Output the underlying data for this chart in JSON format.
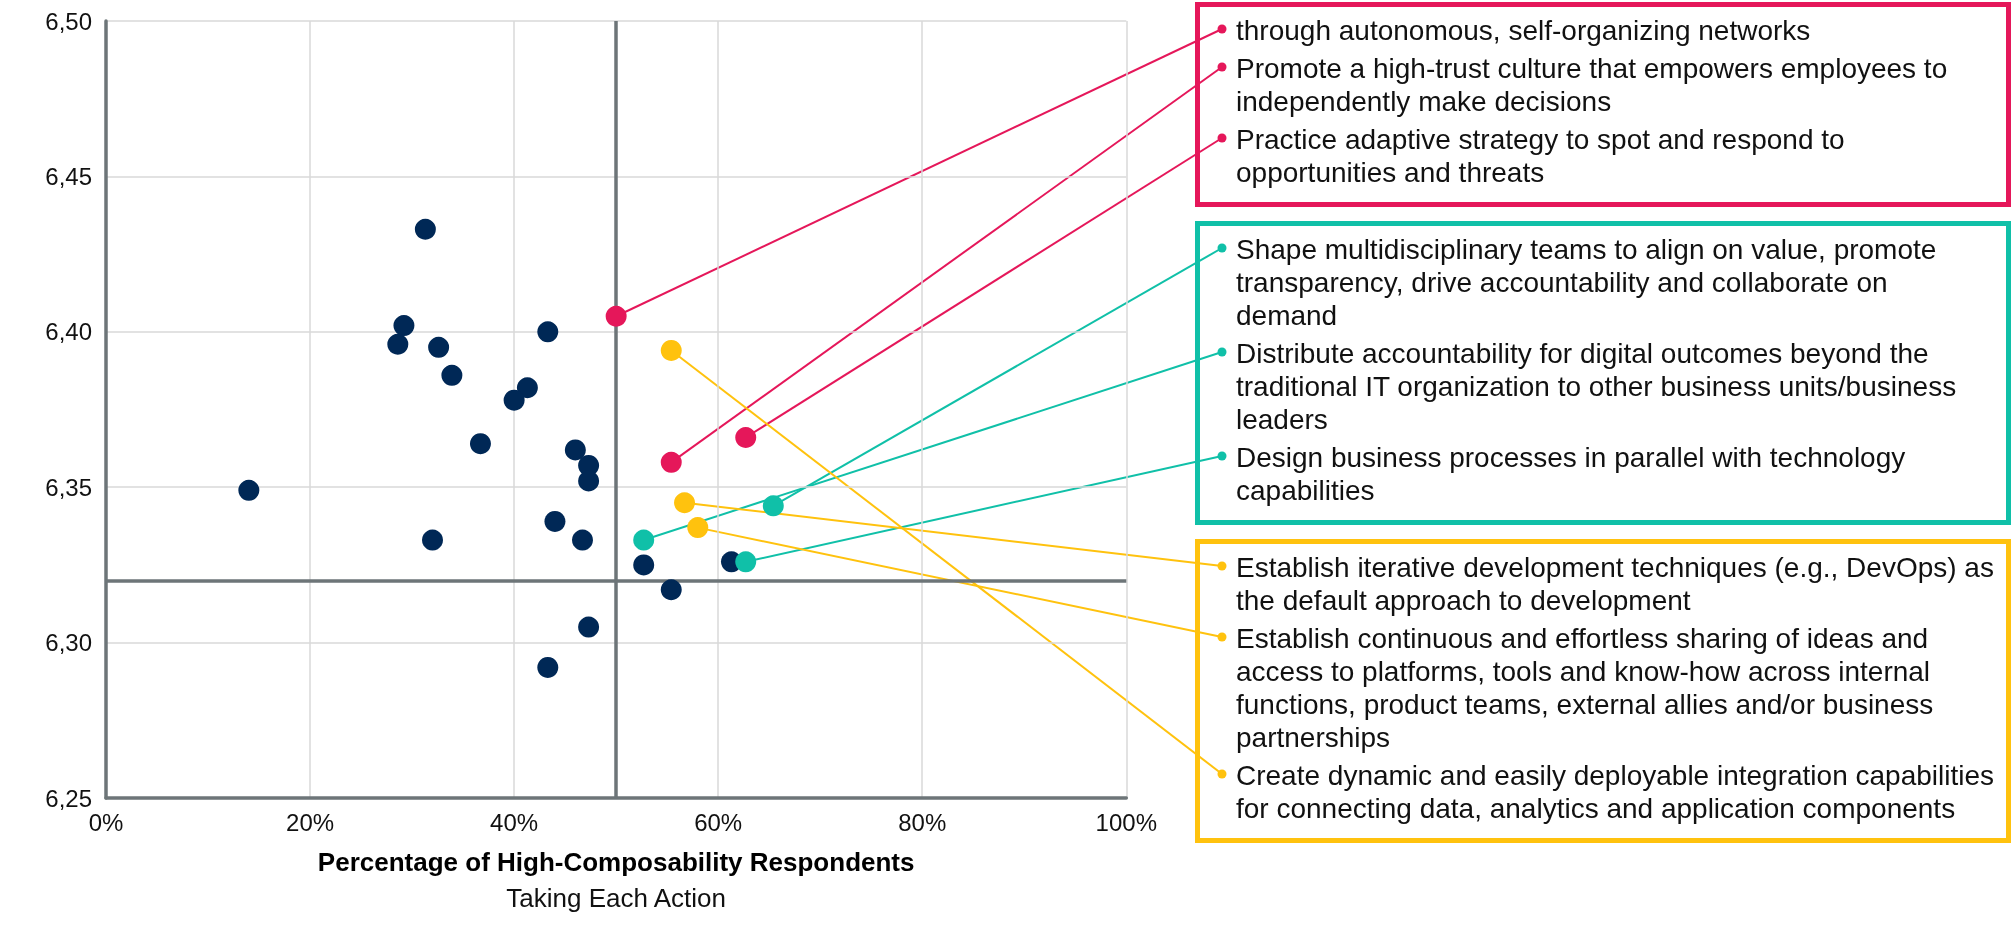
{
  "chart_data": {
    "type": "scatter",
    "xlabel": "Percentage of High-Composability Respondents\nTaking Each Action",
    "xlim": [
      0,
      100
    ],
    "xticks": [
      {
        "value": 0,
        "label": "0%"
      },
      {
        "value": 20,
        "label": "20%"
      },
      {
        "value": 40,
        "label": "40%"
      },
      {
        "value": 60,
        "label": "60%"
      },
      {
        "value": 80,
        "label": "80%"
      },
      {
        "value": 100,
        "label": "100%"
      }
    ],
    "ylim": [
      6.25,
      6.5
    ],
    "yticks": [
      {
        "value": 6.25,
        "label": "6,25"
      },
      {
        "value": 6.3,
        "label": "6,30"
      },
      {
        "value": 6.35,
        "label": "6,35"
      },
      {
        "value": 6.4,
        "label": "6,40"
      },
      {
        "value": 6.45,
        "label": "6,45"
      },
      {
        "value": 6.5,
        "label": "6,50"
      }
    ],
    "grid": true,
    "marker": "circle",
    "series": [
      {
        "color": "#002856",
        "x": [
          31.3,
          29.2,
          28.6,
          32.6,
          33.9,
          43.3,
          41.3,
          40.0,
          36.7,
          46.0,
          47.3,
          47.3,
          14.0,
          32.0,
          44.0,
          46.7,
          52.7,
          55.4,
          61.3,
          47.3,
          43.3
        ],
        "values": [
          6.433,
          6.402,
          6.396,
          6.395,
          6.386,
          6.4,
          6.382,
          6.378,
          6.364,
          6.362,
          6.357,
          6.352,
          6.349,
          6.333,
          6.339,
          6.333,
          6.325,
          6.317,
          6.326,
          6.305,
          6.292
        ]
      },
      {
        "color": "#e5175a",
        "x": [
          50.0,
          55.4,
          62.7
        ],
        "values": [
          6.405,
          6.358,
          6.366
        ]
      },
      {
        "color": "#10c0a8",
        "x": [
          65.4,
          52.7,
          62.7
        ],
        "values": [
          6.344,
          6.333,
          6.326
        ]
      },
      {
        "color": "#ffc20e",
        "x": [
          56.7,
          58.0,
          55.4
        ],
        "values": [
          6.345,
          6.337,
          6.394
        ]
      }
    ],
    "ref_lines": [
      {
        "axis": "x",
        "value": 50,
        "color": "#6d7578"
      },
      {
        "axis": "y",
        "value": 6.32,
        "color": "#6d7578"
      }
    ],
    "annotations": [
      {
        "text": "through autonomous, self-organizing networks",
        "x": 50.0,
        "y": 6.405
      },
      {
        "text": "Promote a high-trust culture that empowers employees to independently make decisions",
        "x": 55.4,
        "y": 6.358
      },
      {
        "text": "Practice adaptive strategy to spot and respond to opportunities and threats",
        "x": 62.7,
        "y": 6.366
      },
      {
        "text": "Shape multidisciplinary teams to align on value, promote transparency, drive accountability and collaborate on demand",
        "x": 65.4,
        "y": 6.344
      },
      {
        "text": "Distribute accountability for digital outcomes beyond the traditional IT organization to other business units/business leaders",
        "x": 52.7,
        "y": 6.333
      },
      {
        "text": "Design business processes in parallel with technology capabilities",
        "x": 62.7,
        "y": 6.326
      },
      {
        "text": "Establish iterative development techniques (e.g., DevOps) as the default approach to development",
        "x": 56.7,
        "y": 6.345
      },
      {
        "text": "Establish continuous and effortless sharing of ideas and access to platforms, tools and know-how across internal functions, product teams, external allies and/or business partnerships",
        "x": 58.0,
        "y": 6.337
      },
      {
        "text": "Create dynamic and easily deployable integration capabilities for connecting data, analytics and application components",
        "x": 55.4,
        "y": 6.394
      }
    ]
  }
}
